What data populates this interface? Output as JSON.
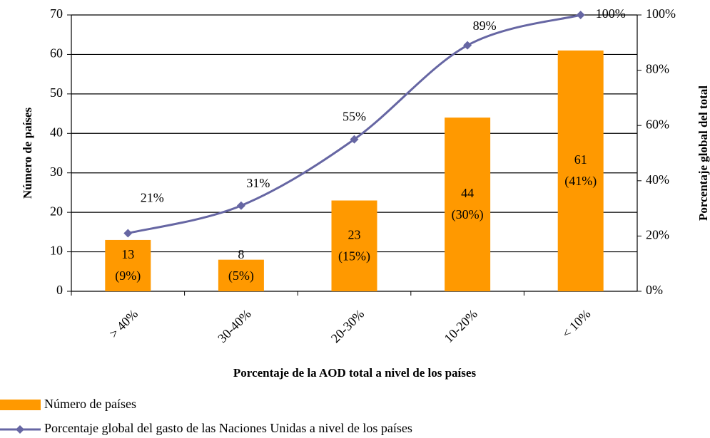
{
  "chart_data": {
    "type": "bar-line",
    "categories": [
      "> 40%",
      "30-40%",
      "20-30%",
      "10-20%",
      "< 10%"
    ],
    "series": [
      {
        "name": "Número de países",
        "type": "bar",
        "color": "#ff9900",
        "values": [
          13,
          8,
          23,
          44,
          61
        ],
        "share_labels": [
          "(9%)",
          "(5%)",
          "(15%)",
          "(30%)",
          "(41%)"
        ]
      },
      {
        "name": "Porcentaje global del gasto de las Naciones Unidas a nivel de los países",
        "type": "line",
        "axis": "y2",
        "color": "#6666a3",
        "values": [
          21,
          31,
          55,
          89,
          100
        ],
        "value_labels": [
          "21%",
          "31%",
          "55%",
          "89%",
          "100%"
        ]
      }
    ],
    "ylim": [
      0,
      70
    ],
    "yticks": [
      0,
      10,
      20,
      30,
      40,
      50,
      60,
      70
    ],
    "y2lim": [
      0,
      100
    ],
    "y2ticks": [
      {
        "value": 0,
        "label": "0%"
      },
      {
        "value": 20,
        "label": "20%"
      },
      {
        "value": 40,
        "label": "40%"
      },
      {
        "value": 60,
        "label": "60%"
      },
      {
        "value": 80,
        "label": "80%"
      },
      {
        "value": 100,
        "label": "100%"
      }
    ],
    "ylabel": "Número de países",
    "y2label": "Porcentaje global del total",
    "xlabel": "Porcentaje de la AOD total a nivel de los países",
    "grid": true
  }
}
